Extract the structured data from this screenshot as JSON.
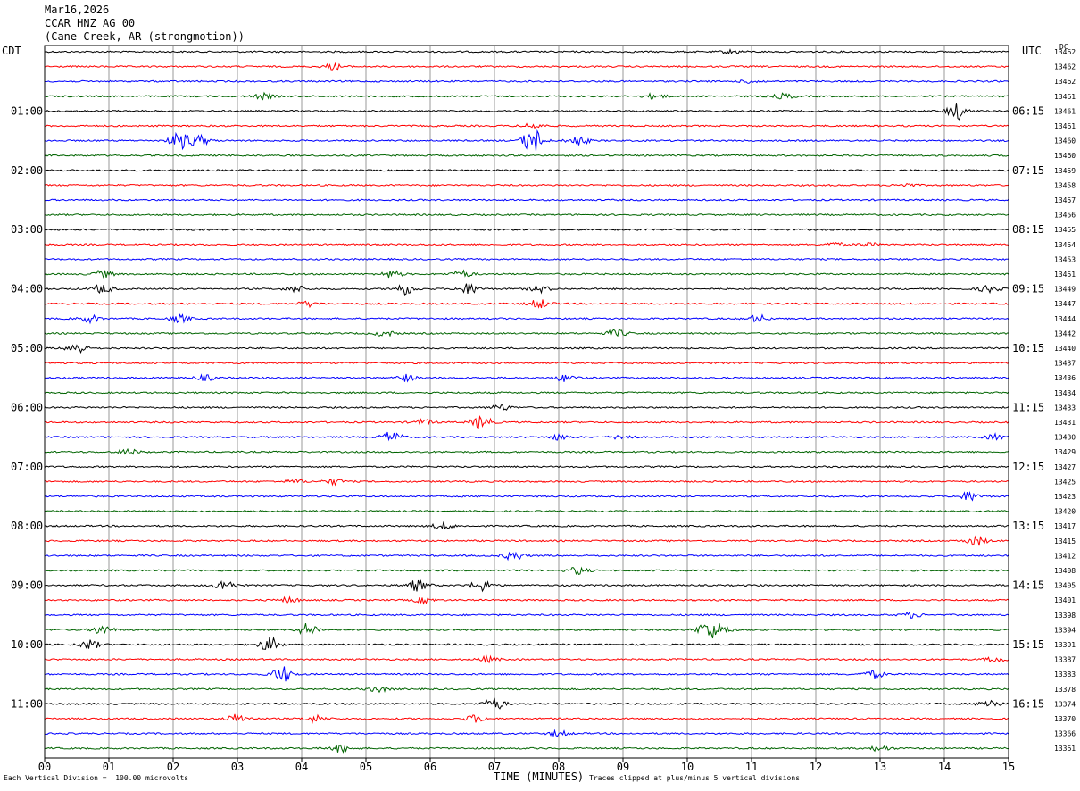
{
  "header": {
    "date": "Mar16,2026",
    "station": "CCAR HNZ AG 00",
    "location": "(Cane Creek, AR (strongmotion))"
  },
  "left_timezone": "CDT",
  "right_timezone": "UTC",
  "dc_label": "DC",
  "footer": {
    "scale_note": "Each Vertical Division =  100.00 microvolts",
    "xlabel": "TIME (MINUTES)",
    "clip_note": "Traces clipped at plus/minus 5 vertical divisions"
  },
  "colors": {
    "black": "#000000",
    "red": "#ff0000",
    "blue": "#0000ff",
    "green": "#006400",
    "grid": "#808080"
  },
  "chart_data": {
    "type": "line",
    "title": "CCAR HNZ AG 00",
    "xlabel": "TIME (MINUTES)",
    "xlim": [
      0,
      15
    ],
    "x_ticks": [
      "00",
      "01",
      "02",
      "03",
      "04",
      "05",
      "06",
      "07",
      "08",
      "09",
      "10",
      "11",
      "12",
      "13",
      "14",
      "15"
    ],
    "left_labels": [
      {
        "row": 4,
        "text": "01:00"
      },
      {
        "row": 8,
        "text": "02:00"
      },
      {
        "row": 12,
        "text": "03:00"
      },
      {
        "row": 16,
        "text": "04:00"
      },
      {
        "row": 20,
        "text": "05:00"
      },
      {
        "row": 24,
        "text": "06:00"
      },
      {
        "row": 28,
        "text": "07:00"
      },
      {
        "row": 32,
        "text": "08:00"
      },
      {
        "row": 36,
        "text": "09:00"
      },
      {
        "row": 40,
        "text": "10:00"
      },
      {
        "row": 44,
        "text": "11:00"
      }
    ],
    "right_labels": [
      {
        "row": 4,
        "text": "06:15"
      },
      {
        "row": 8,
        "text": "07:15"
      },
      {
        "row": 12,
        "text": "08:15"
      },
      {
        "row": 16,
        "text": "09:15"
      },
      {
        "row": 20,
        "text": "10:15"
      },
      {
        "row": 24,
        "text": "11:15"
      },
      {
        "row": 28,
        "text": "12:15"
      },
      {
        "row": 32,
        "text": "13:15"
      },
      {
        "row": 36,
        "text": "14:15"
      },
      {
        "row": 40,
        "text": "15:15"
      },
      {
        "row": 44,
        "text": "16:15"
      }
    ],
    "dc_values": [
      "13462",
      "13462",
      "13462",
      "13461",
      "13461",
      "13461",
      "13460",
      "13460",
      "13459",
      "13458",
      "13457",
      "13456",
      "13455",
      "13454",
      "13453",
      "13451",
      "13449",
      "13447",
      "13444",
      "13442",
      "13440",
      "13437",
      "13436",
      "13434",
      "13433",
      "13431",
      "13430",
      "13429",
      "13427",
      "13425",
      "13423",
      "13420",
      "13417",
      "13415",
      "13412",
      "13408",
      "13405",
      "13401",
      "13398",
      "13394",
      "13391",
      "13387",
      "13383",
      "13378",
      "13374",
      "13370",
      "13366",
      "13361"
    ],
    "trace_colors": [
      "black",
      "red",
      "blue",
      "green"
    ],
    "events": [
      {
        "row": 0,
        "t": 10.7,
        "amp": 2
      },
      {
        "row": 1,
        "t": 4.5,
        "amp": 3
      },
      {
        "row": 2,
        "t": 11.0,
        "amp": 2
      },
      {
        "row": 3,
        "t": 3.4,
        "amp": 3
      },
      {
        "row": 3,
        "t": 9.5,
        "amp": 3
      },
      {
        "row": 3,
        "t": 11.5,
        "amp": 3
      },
      {
        "row": 4,
        "t": 14.2,
        "amp": 9
      },
      {
        "row": 5,
        "t": 7.6,
        "amp": 3
      },
      {
        "row": 6,
        "t": 2.1,
        "amp": 9
      },
      {
        "row": 6,
        "t": 2.4,
        "amp": 6
      },
      {
        "row": 6,
        "t": 7.6,
        "amp": 14
      },
      {
        "row": 6,
        "t": 8.3,
        "amp": 5
      },
      {
        "row": 9,
        "t": 13.4,
        "amp": 2
      },
      {
        "row": 13,
        "t": 12.3,
        "amp": 2
      },
      {
        "row": 13,
        "t": 12.8,
        "amp": 2
      },
      {
        "row": 15,
        "t": 0.9,
        "amp": 4
      },
      {
        "row": 15,
        "t": 5.4,
        "amp": 4
      },
      {
        "row": 15,
        "t": 6.5,
        "amp": 4
      },
      {
        "row": 16,
        "t": 0.9,
        "amp": 5
      },
      {
        "row": 16,
        "t": 3.9,
        "amp": 4
      },
      {
        "row": 16,
        "t": 5.6,
        "amp": 6
      },
      {
        "row": 16,
        "t": 6.6,
        "amp": 6
      },
      {
        "row": 16,
        "t": 7.7,
        "amp": 4
      },
      {
        "row": 16,
        "t": 14.7,
        "amp": 4
      },
      {
        "row": 17,
        "t": 4.1,
        "amp": 3
      },
      {
        "row": 17,
        "t": 7.7,
        "amp": 5
      },
      {
        "row": 18,
        "t": 0.7,
        "amp": 4
      },
      {
        "row": 18,
        "t": 2.1,
        "amp": 4
      },
      {
        "row": 18,
        "t": 11.1,
        "amp": 4
      },
      {
        "row": 19,
        "t": 5.3,
        "amp": 3
      },
      {
        "row": 19,
        "t": 8.9,
        "amp": 4
      },
      {
        "row": 20,
        "t": 0.5,
        "amp": 6
      },
      {
        "row": 22,
        "t": 2.5,
        "amp": 3
      },
      {
        "row": 22,
        "t": 5.6,
        "amp": 4
      },
      {
        "row": 22,
        "t": 8.1,
        "amp": 4
      },
      {
        "row": 24,
        "t": 7.1,
        "amp": 3
      },
      {
        "row": 25,
        "t": 5.9,
        "amp": 3
      },
      {
        "row": 25,
        "t": 6.8,
        "amp": 7
      },
      {
        "row": 26,
        "t": 5.4,
        "amp": 6
      },
      {
        "row": 26,
        "t": 8.0,
        "amp": 3
      },
      {
        "row": 26,
        "t": 9.0,
        "amp": 3
      },
      {
        "row": 26,
        "t": 14.8,
        "amp": 3
      },
      {
        "row": 27,
        "t": 1.3,
        "amp": 3
      },
      {
        "row": 29,
        "t": 3.9,
        "amp": 2
      },
      {
        "row": 29,
        "t": 4.5,
        "amp": 3
      },
      {
        "row": 30,
        "t": 14.4,
        "amp": 5
      },
      {
        "row": 32,
        "t": 6.2,
        "amp": 4
      },
      {
        "row": 33,
        "t": 14.5,
        "amp": 5
      },
      {
        "row": 34,
        "t": 7.3,
        "amp": 5
      },
      {
        "row": 35,
        "t": 8.3,
        "amp": 4
      },
      {
        "row": 36,
        "t": 2.8,
        "amp": 6
      },
      {
        "row": 36,
        "t": 5.8,
        "amp": 6
      },
      {
        "row": 36,
        "t": 6.8,
        "amp": 6
      },
      {
        "row": 37,
        "t": 3.8,
        "amp": 3
      },
      {
        "row": 37,
        "t": 5.9,
        "amp": 3
      },
      {
        "row": 38,
        "t": 13.5,
        "amp": 3
      },
      {
        "row": 39,
        "t": 0.9,
        "amp": 5
      },
      {
        "row": 39,
        "t": 4.1,
        "amp": 7
      },
      {
        "row": 39,
        "t": 10.3,
        "amp": 8
      },
      {
        "row": 39,
        "t": 10.5,
        "amp": 6
      },
      {
        "row": 40,
        "t": 0.7,
        "amp": 5
      },
      {
        "row": 40,
        "t": 3.5,
        "amp": 8
      },
      {
        "row": 41,
        "t": 6.9,
        "amp": 3
      },
      {
        "row": 41,
        "t": 14.8,
        "amp": 3
      },
      {
        "row": 42,
        "t": 3.7,
        "amp": 9
      },
      {
        "row": 42,
        "t": 12.9,
        "amp": 4
      },
      {
        "row": 43,
        "t": 5.2,
        "amp": 3
      },
      {
        "row": 44,
        "t": 7.0,
        "amp": 7
      },
      {
        "row": 44,
        "t": 14.7,
        "amp": 5
      },
      {
        "row": 45,
        "t": 3.0,
        "amp": 5
      },
      {
        "row": 45,
        "t": 4.2,
        "amp": 4
      },
      {
        "row": 45,
        "t": 6.7,
        "amp": 4
      },
      {
        "row": 46,
        "t": 8.0,
        "amp": 3
      },
      {
        "row": 47,
        "t": 4.6,
        "amp": 4
      },
      {
        "row": 47,
        "t": 13.0,
        "amp": 3
      }
    ]
  }
}
